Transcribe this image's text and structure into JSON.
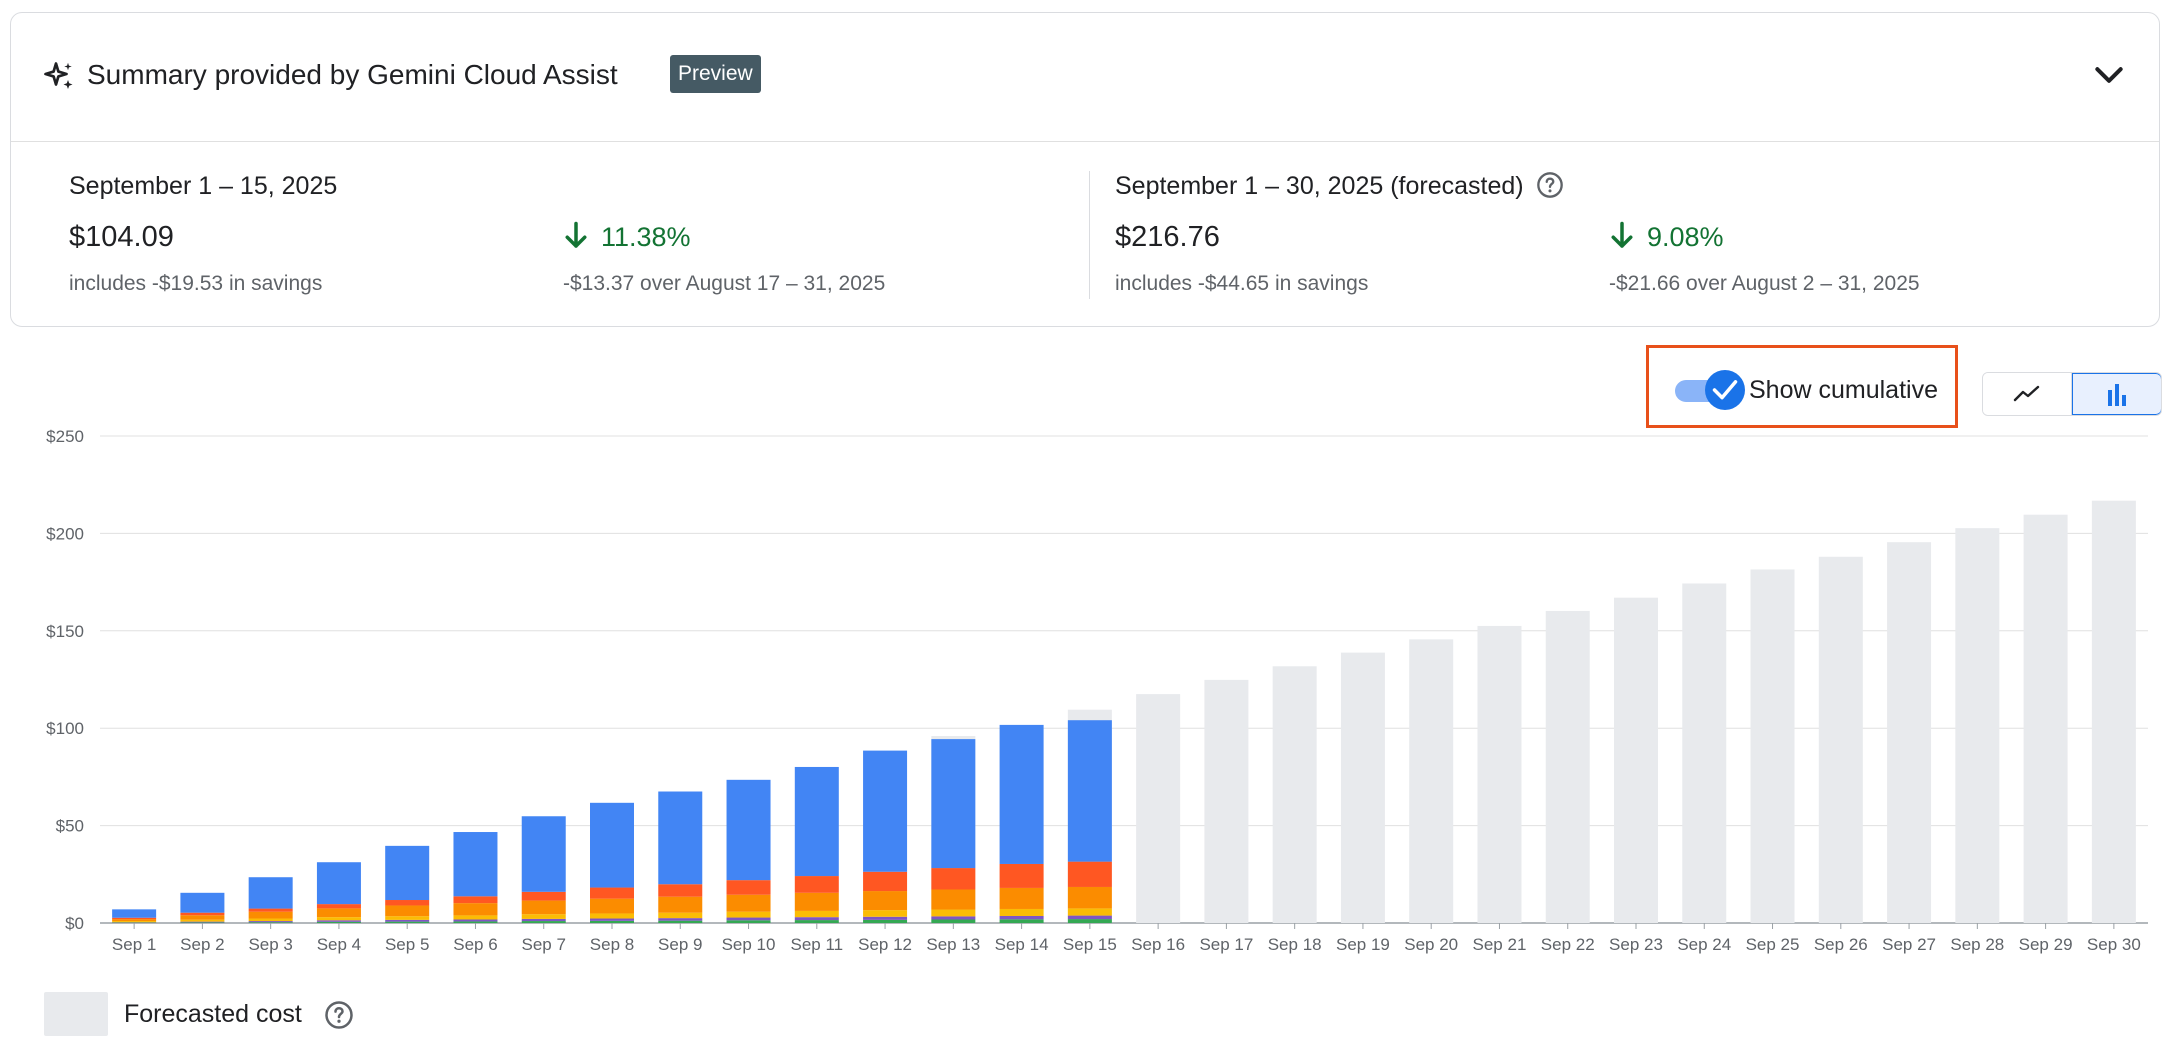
{
  "summary": {
    "title": "Summary provided by Gemini Cloud Assist",
    "badge": "Preview",
    "current": {
      "period": "September 1 – 15, 2025",
      "amount": "$104.09",
      "savings": "includes -$19.53 in savings",
      "change_pct": "11.38%",
      "change_detail": "-$13.37 over August 17 – 31, 2025"
    },
    "forecast": {
      "period": "September 1 – 30, 2025 (forecasted)",
      "amount": "$216.76",
      "savings": "includes -$44.65 in savings",
      "change_pct": "9.08%",
      "change_detail": "-$21.66 over August 2 – 31, 2025"
    }
  },
  "controls": {
    "show_cumulative_label": "Show cumulative",
    "show_cumulative_checked": true,
    "view_mode": "bar"
  },
  "legend": {
    "forecast_label": "Forecasted cost"
  },
  "colors": {
    "blue": "#4285f4",
    "orange_red": "#ff5722",
    "orange": "#fb8c00",
    "yellow": "#fbbc04",
    "green": "#34a853",
    "purple": "#7e57c2",
    "forecast": "#e8eaed",
    "accent": "#1a73e8",
    "positive": "#137333",
    "highlight": "#e8501a"
  },
  "chart_data": {
    "type": "bar",
    "stacked": true,
    "cumulative": true,
    "ylim": [
      0,
      250
    ],
    "yticks": [
      "$0",
      "$50",
      "$100",
      "$150",
      "$200",
      "$250"
    ],
    "ytick_values": [
      0,
      50,
      100,
      150,
      200,
      250
    ],
    "categories": [
      "Sep 1",
      "Sep 2",
      "Sep 3",
      "Sep 4",
      "Sep 5",
      "Sep 6",
      "Sep 7",
      "Sep 8",
      "Sep 9",
      "Sep 10",
      "Sep 11",
      "Sep 12",
      "Sep 13",
      "Sep 14",
      "Sep 15",
      "Sep 16",
      "Sep 17",
      "Sep 18",
      "Sep 19",
      "Sep 20",
      "Sep 21",
      "Sep 22",
      "Sep 23",
      "Sep 24",
      "Sep 25",
      "Sep 26",
      "Sep 27",
      "Sep 28",
      "Sep 29",
      "Sep 30"
    ],
    "series": [
      {
        "color": "#34a853",
        "values": [
          0.2,
          0.3,
          0.4,
          0.6,
          0.7,
          0.8,
          1.0,
          1.1,
          1.2,
          1.4,
          1.5,
          1.6,
          1.8,
          1.9,
          2.0,
          null,
          null,
          null,
          null,
          null,
          null,
          null,
          null,
          null,
          null,
          null,
          null,
          null,
          null,
          null
        ]
      },
      {
        "color": "#7e57c2",
        "values": [
          0.2,
          0.4,
          0.6,
          0.8,
          0.9,
          1.0,
          1.1,
          1.2,
          1.3,
          1.4,
          1.5,
          1.6,
          1.6,
          1.7,
          1.8,
          null,
          null,
          null,
          null,
          null,
          null,
          null,
          null,
          null,
          null,
          null,
          null,
          null,
          null,
          null
        ]
      },
      {
        "color": "#fbbc04",
        "values": [
          0.6,
          1.0,
          1.3,
          1.6,
          1.9,
          2.1,
          2.4,
          2.6,
          2.8,
          3.0,
          3.2,
          3.4,
          3.5,
          3.6,
          3.7,
          null,
          null,
          null,
          null,
          null,
          null,
          null,
          null,
          null,
          null,
          null,
          null,
          null,
          null,
          null
        ]
      },
      {
        "color": "#fb8c00",
        "values": [
          1.0,
          2.3,
          3.5,
          4.5,
          5.5,
          6.3,
          7.0,
          7.6,
          8.2,
          8.7,
          9.3,
          9.8,
          10.3,
          10.8,
          11.0,
          null,
          null,
          null,
          null,
          null,
          null,
          null,
          null,
          null,
          null,
          null,
          null,
          null,
          null,
          null
        ]
      },
      {
        "color": "#ff5722",
        "values": [
          0.7,
          1.3,
          1.6,
          2.2,
          2.8,
          3.5,
          4.5,
          5.7,
          6.4,
          7.5,
          8.6,
          9.9,
          11.0,
          12.3,
          13.0,
          null,
          null,
          null,
          null,
          null,
          null,
          null,
          null,
          null,
          null,
          null,
          null,
          null,
          null,
          null
        ]
      },
      {
        "color": "#4285f4",
        "values": [
          4.3,
          10.2,
          16.1,
          21.5,
          27.8,
          33.0,
          38.8,
          43.5,
          47.6,
          51.5,
          56.0,
          62.2,
          66.2,
          71.4,
          72.6,
          null,
          null,
          null,
          null,
          null,
          null,
          null,
          null,
          null,
          null,
          null,
          null,
          null,
          null,
          null
        ]
      }
    ],
    "forecast": [
      null,
      null,
      null,
      null,
      null,
      null,
      null,
      null,
      null,
      null,
      null,
      null,
      96,
      null,
      109.5,
      117.5,
      124.8,
      131.8,
      138.8,
      145.6,
      152.5,
      160.2,
      167.0,
      174.3,
      181.5,
      188.0,
      195.5,
      202.7,
      209.6,
      216.8
    ]
  }
}
